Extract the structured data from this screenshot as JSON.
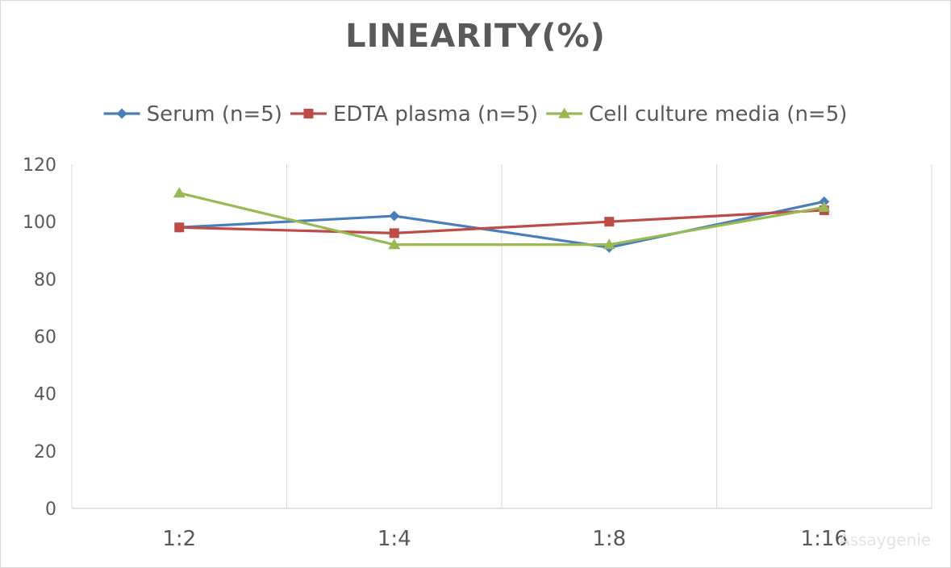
{
  "chart_data": {
    "type": "line",
    "title": "LINEARITY(%)",
    "categories": [
      "1:2",
      "1:4",
      "1:8",
      "1:16"
    ],
    "ylim": [
      0,
      120
    ],
    "yticks": [
      0,
      20,
      40,
      60,
      80,
      100,
      120
    ],
    "grid": "vertical",
    "legend_position": "top",
    "series": [
      {
        "name": "Serum (n=5)",
        "values": [
          98,
          102,
          91,
          107
        ],
        "color": "#4a7ebb",
        "marker": "diamond"
      },
      {
        "name": "EDTA plasma (n=5)",
        "values": [
          98,
          96,
          100,
          104
        ],
        "color": "#be4b48",
        "marker": "square"
      },
      {
        "name": "Cell culture media (n=5)",
        "values": [
          110,
          92,
          92,
          105
        ],
        "color": "#98b954",
        "marker": "triangle"
      }
    ]
  },
  "watermark": "Assaygenie"
}
